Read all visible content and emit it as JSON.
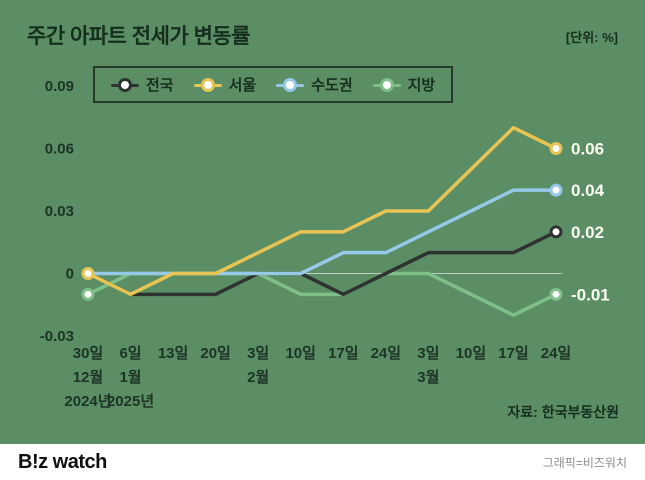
{
  "header": {
    "title": "주간 아파트 전세가 변동률",
    "unit": "[단위: %]"
  },
  "legend": {
    "items": [
      {
        "label": "전국",
        "color": "#2f3330"
      },
      {
        "label": "서울",
        "color": "#e7c454"
      },
      {
        "label": "수도권",
        "color": "#96c8e8"
      },
      {
        "label": "지방",
        "color": "#7fc08a"
      }
    ]
  },
  "chart_data": {
    "type": "line",
    "title": "주간 아파트 전세가 변동률",
    "unit": "%",
    "categories": [
      "30일",
      "6일",
      "13일",
      "20일",
      "3일",
      "10일",
      "17일",
      "24일",
      "3일",
      "10일",
      "17일",
      "24일"
    ],
    "month_labels": {
      "0": "12월",
      "1": "1월",
      "4": "2월",
      "8": "3월"
    },
    "year_labels": {
      "0": "2024년",
      "1": "2025년"
    },
    "y_ticks": [
      0.09,
      0.06,
      0.03,
      0,
      -0.03
    ],
    "y_tick_labels": [
      "0.09",
      "0.06",
      "0.03",
      "0",
      "-0.03"
    ],
    "ylim": [
      -0.03,
      0.09
    ],
    "grid": "zero-line-only",
    "legend_position": "top",
    "series": [
      {
        "name": "전국",
        "color": "#2f3330",
        "end_label": "0.02",
        "values": [
          0,
          -0.01,
          -0.01,
          -0.01,
          0,
          0,
          -0.01,
          0,
          0.01,
          0.01,
          0.01,
          0.02
        ]
      },
      {
        "name": "서울",
        "color": "#e7c454",
        "end_label": "0.06",
        "values": [
          0,
          -0.01,
          0,
          0,
          0.01,
          0.02,
          0.02,
          0.03,
          0.03,
          0.05,
          0.07,
          0.06
        ]
      },
      {
        "name": "수도권",
        "color": "#96c8e8",
        "end_label": "0.04",
        "values": [
          0,
          0,
          0,
          0,
          0,
          0,
          0.01,
          0.01,
          0.02,
          0.03,
          0.04,
          0.04
        ]
      },
      {
        "name": "지방",
        "color": "#7fc08a",
        "end_label": "-0.01",
        "values": [
          -0.01,
          0,
          0,
          0,
          0,
          -0.01,
          -0.01,
          0,
          0,
          -0.01,
          -0.02,
          -0.01
        ]
      }
    ]
  },
  "source": "자료: 한국부동산원",
  "footer": {
    "logo": "B!z watch",
    "credit": "그래픽=비즈워치"
  }
}
